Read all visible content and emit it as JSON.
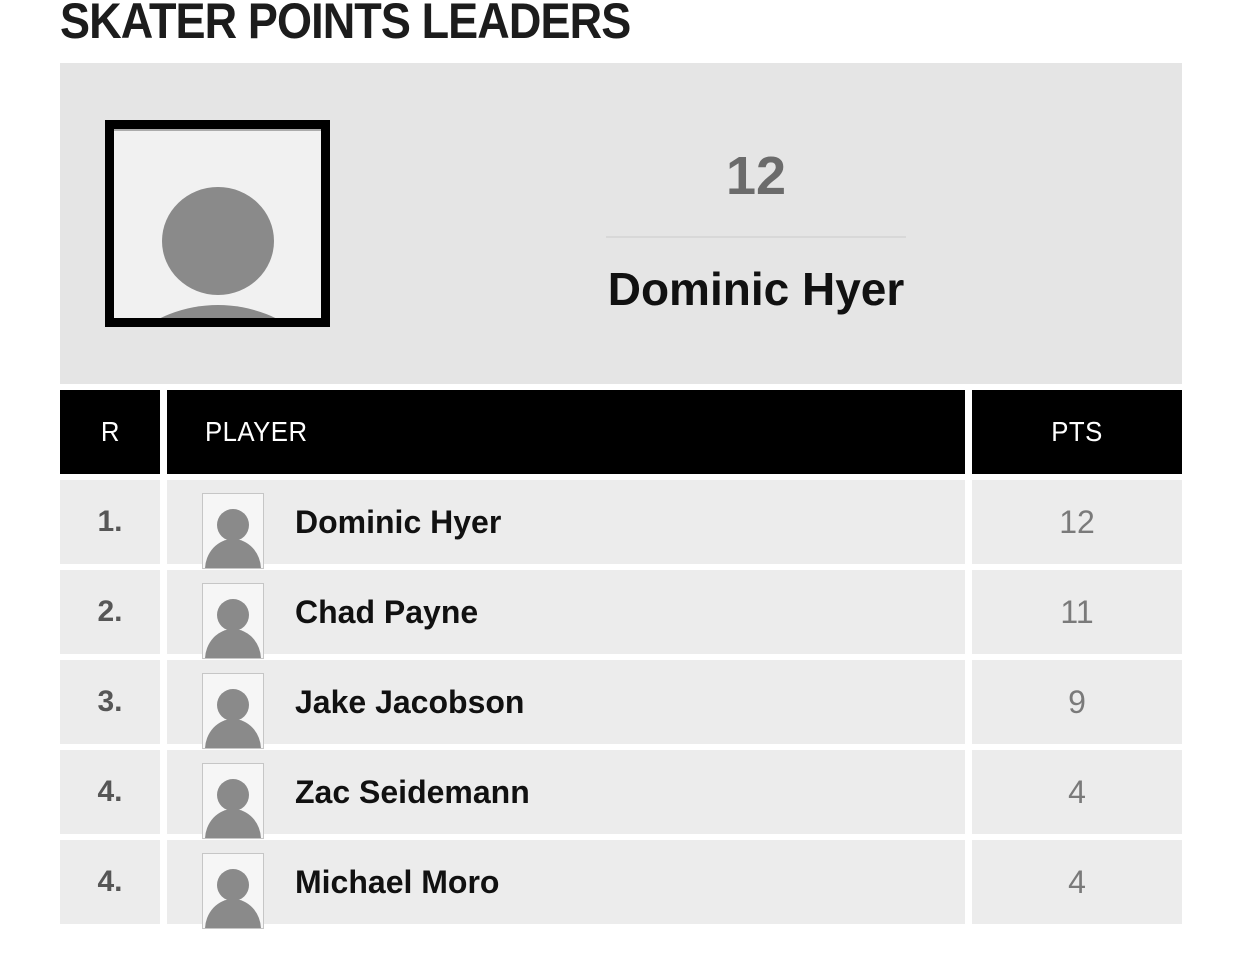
{
  "title": "SKATER POINTS LEADERS",
  "featured": {
    "points": "12",
    "name": "Dominic Hyer",
    "photo_icon": "person-silhouette-icon"
  },
  "table": {
    "columns": {
      "rank": "R",
      "player": "PLAYER",
      "points": "PTS"
    },
    "rows": [
      {
        "rank": "1.",
        "player": "Dominic Hyer",
        "points": "12"
      },
      {
        "rank": "2.",
        "player": "Chad Payne",
        "points": "11"
      },
      {
        "rank": "3.",
        "player": "Jake Jacobson",
        "points": "9"
      },
      {
        "rank": "4.",
        "player": "Zac Seidemann",
        "points": "4"
      },
      {
        "rank": "4.",
        "player": "Michael Moro",
        "points": "4"
      }
    ]
  },
  "colors": {
    "featured_card_bg": "#e5e5e5",
    "row_bg": "#ececec",
    "header_bg": "#000000",
    "header_text": "#ffffff",
    "rank_text": "#565656",
    "name_text": "#111111",
    "points_text": "#7a7a7a",
    "featured_points_text": "#6b6b6b",
    "divider": "#d8d8d8",
    "silhouette": "#8a8a8a"
  }
}
